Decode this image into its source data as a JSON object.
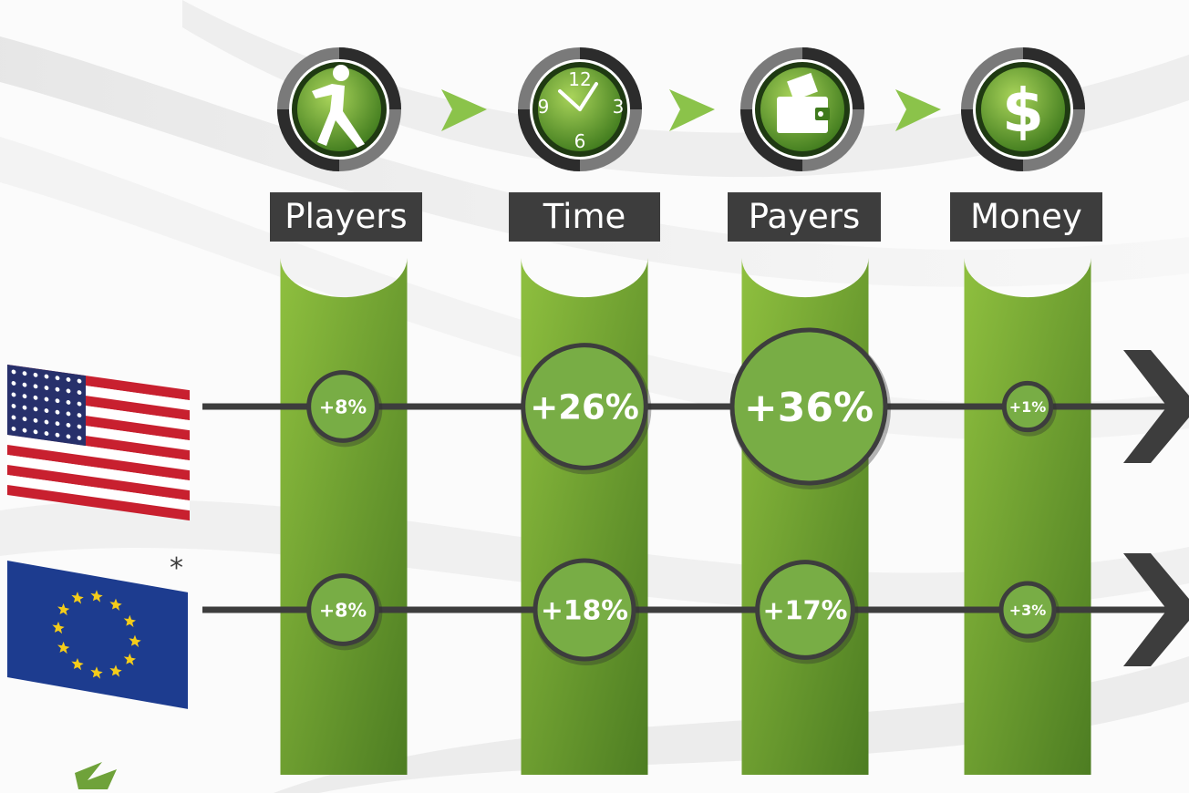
{
  "colors": {
    "green": "#7aa83a",
    "green_light": "#8fc03f",
    "green_dark": "#4d7d22",
    "gray_dark": "#3d3d3d",
    "ring_gray": "#6b6b6b",
    "arrow_green": "#8bc34a"
  },
  "metrics": [
    {
      "label": "Players",
      "icon": "runner-icon"
    },
    {
      "label": "Time",
      "icon": "clock-icon"
    },
    {
      "label": "Payers",
      "icon": "wallet-icon"
    },
    {
      "label": "Money",
      "icon": "dollar-icon"
    }
  ],
  "clock": {
    "n12": "12",
    "n3": "3",
    "n6": "6",
    "n9": "9"
  },
  "dollar_symbol": "$",
  "flags": [
    {
      "icon": "us-flag-icon"
    },
    {
      "icon": "eu-flag-icon",
      "note": "*"
    }
  ],
  "chart_data": {
    "type": "table",
    "categories": [
      "Players",
      "Time",
      "Payers",
      "Money"
    ],
    "series": [
      {
        "values": [
          8,
          26,
          36,
          1
        ],
        "labels": [
          "+8%",
          "+26%",
          "+36%",
          "+1%"
        ]
      },
      {
        "values": [
          8,
          18,
          17,
          3
        ],
        "labels": [
          "+8%",
          "+18%",
          "+17%",
          "+3%"
        ]
      }
    ]
  }
}
